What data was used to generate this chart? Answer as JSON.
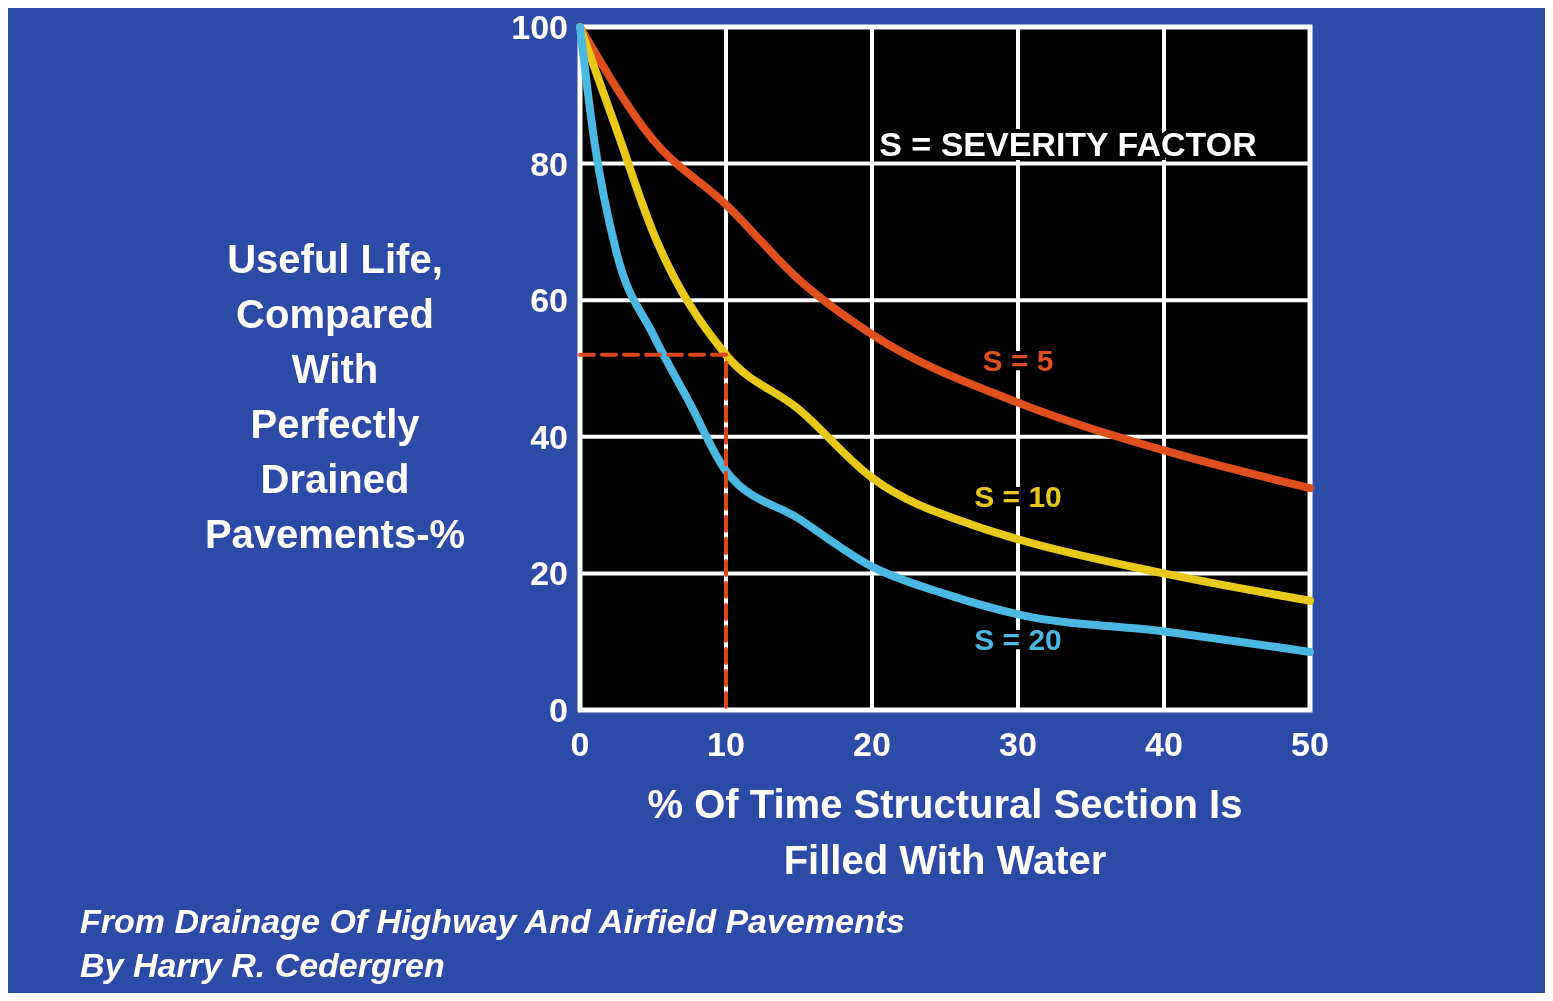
{
  "chart_data": {
    "type": "line",
    "xlabel": "% Of Time Structural Section Is\nFilled With Water",
    "ylabel": "Useful Life,\nCompared\nWith\nPerfectly\nDrained\nPavements-%",
    "annotations": [
      "S = SEVERITY FACTOR",
      "From Drainage Of Highway And Airfield Pavements",
      "By Harry R. Cedergren"
    ],
    "xlim": [
      0,
      50
    ],
    "ylim": [
      0,
      100
    ],
    "xticks": [
      0,
      10,
      20,
      30,
      40,
      50
    ],
    "yticks": [
      0,
      20,
      40,
      60,
      80,
      100
    ],
    "grid": true,
    "marker": "none",
    "series": [
      {
        "name": "S = 5",
        "color": "#e0501e",
        "x": [
          0,
          5,
          10,
          15,
          20,
          30,
          40,
          50
        ],
        "values": [
          100,
          83.5,
          74,
          63,
          55,
          45,
          38,
          32.5
        ]
      },
      {
        "name": "S = 10",
        "color": "#e8c81a",
        "x": [
          0,
          2.5,
          5,
          10,
          15,
          20,
          27,
          30,
          40,
          50
        ],
        "values": [
          100,
          85,
          70,
          52,
          44,
          34,
          27,
          25,
          20,
          16
        ]
      },
      {
        "name": "S = 20",
        "color": "#4ab8e0",
        "x": [
          0,
          1,
          2.5,
          5,
          7.5,
          10,
          15,
          20,
          25,
          30,
          40,
          50
        ],
        "values": [
          100,
          83,
          67,
          55,
          45,
          35,
          28,
          21,
          17,
          14,
          11.5,
          8.5
        ]
      },
      {
        "color": "#d9481c",
        "line_style": "dashed",
        "x": [
          0,
          10,
          10
        ],
        "values": [
          52,
          52,
          0
        ]
      }
    ]
  }
}
